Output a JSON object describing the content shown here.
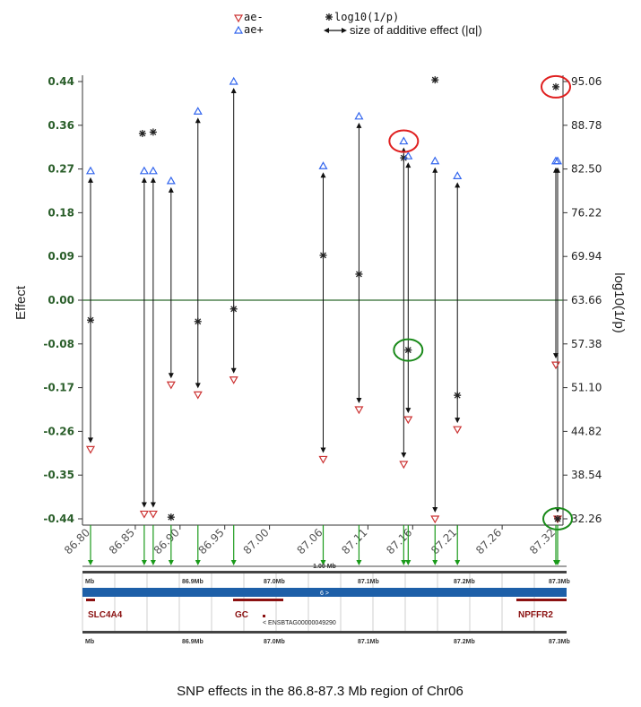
{
  "legend": {
    "ae_minus": "ae-",
    "ae_plus": "ae+",
    "log10": "log10(1/p)",
    "arrow_label": "size of additive effect (|α|)"
  },
  "caption": "SNP effects in the 86.8-87.3 Mb region of Chr06",
  "colors": {
    "ae_minus": "#cc3333",
    "ae_plus": "#3366ee",
    "star": "#222222",
    "zero_line": "#2e6b2e",
    "snp_arrow": "#1a9a1a",
    "track_bar": "#1d5fa8",
    "gene": "#8b1111",
    "highlight_red": "#e02020",
    "highlight_green": "#1a8a1a"
  },
  "chart_data": {
    "type": "scatter",
    "xlabel": "",
    "ylabel": "Effect",
    "ylabel_right": "log10(1/p)",
    "ylim": [
      -0.44,
      0.44
    ],
    "y_ticks": [
      "0.44",
      "0.36",
      "0.27",
      "0.18",
      "0.09",
      "0.00",
      "-0.08",
      "-0.17",
      "-0.26",
      "-0.35",
      "-0.44"
    ],
    "y2_ticks": [
      "95.06",
      "88.78",
      "82.50",
      "76.22",
      "69.94",
      "63.66",
      "57.38",
      "51.10",
      "44.82",
      "38.54",
      "32.26"
    ],
    "x_ticks": [
      "86.80",
      "86.85",
      "86.90",
      "86.95",
      "87.00",
      "87.06",
      "87.11",
      "87.16",
      "87.21",
      "87.26",
      "87.32"
    ],
    "y2lim": [
      32.26,
      95.06
    ],
    "snps": [
      {
        "x": 86.8,
        "ae_plus": 0.26,
        "ae_minus": -0.3,
        "log10p": 60.8
      },
      {
        "x": 86.86,
        "ae_plus": 0.26,
        "ae_minus": -0.43,
        "log10p": 87.6
      },
      {
        "x": 86.87,
        "ae_plus": 0.26,
        "ae_minus": -0.43,
        "log10p": 87.8
      },
      {
        "x": 86.89,
        "ae_plus": 0.24,
        "ae_minus": -0.17,
        "log10p": 32.5
      },
      {
        "x": 86.92,
        "ae_plus": 0.38,
        "ae_minus": -0.19,
        "log10p": 60.6
      },
      {
        "x": 86.96,
        "ae_plus": 0.44,
        "ae_minus": -0.16,
        "log10p": 62.4
      },
      {
        "x": 87.06,
        "ae_plus": 0.27,
        "ae_minus": -0.32,
        "log10p": 70.1
      },
      {
        "x": 87.1,
        "ae_plus": 0.37,
        "ae_minus": -0.22,
        "log10p": 67.4
      },
      {
        "x": 87.15,
        "ae_plus": 0.32,
        "ae_minus": -0.33,
        "log10p": 84.1
      },
      {
        "x": 87.155,
        "ae_plus": 0.29,
        "ae_minus": -0.24,
        "log10p": 56.5
      },
      {
        "x": 87.185,
        "ae_plus": 0.28,
        "ae_minus": -0.44,
        "log10p": 95.3
      },
      {
        "x": 87.21,
        "ae_plus": 0.25,
        "ae_minus": -0.26,
        "log10p": 50.0
      },
      {
        "x": 87.32,
        "ae_plus": 0.28,
        "ae_minus": -0.13,
        "log10p": 94.3
      },
      {
        "x": 87.322,
        "ae_plus": 0.28,
        "ae_minus": -0.44,
        "log10p": 32.26
      }
    ],
    "highlights": [
      {
        "color": "red",
        "x": 87.15,
        "y": 0.32,
        "axis": "left"
      },
      {
        "color": "red",
        "x": 87.32,
        "y": 94.3,
        "axis": "right"
      },
      {
        "color": "green",
        "x": 87.155,
        "y": 56.5,
        "axis": "right"
      },
      {
        "color": "green",
        "x": 87.322,
        "y": 32.26,
        "axis": "right"
      }
    ]
  },
  "genome_track": {
    "scale_label": "1.00 Mb",
    "top_ticks": [
      "Mb",
      "86.9Mb",
      "87.0Mb",
      "87.1Mb",
      "87.2Mb",
      "87.3Mb"
    ],
    "bottom_ticks": [
      "Mb",
      "86.9Mb",
      "87.0Mb",
      "87.1Mb",
      "87.2Mb",
      "87.3Mb"
    ],
    "chrom_label": "6 >",
    "genes": [
      "SLC4A4",
      "GC",
      "NPFFR2"
    ],
    "transcript_label": "< ENSBTAG00000049290"
  }
}
